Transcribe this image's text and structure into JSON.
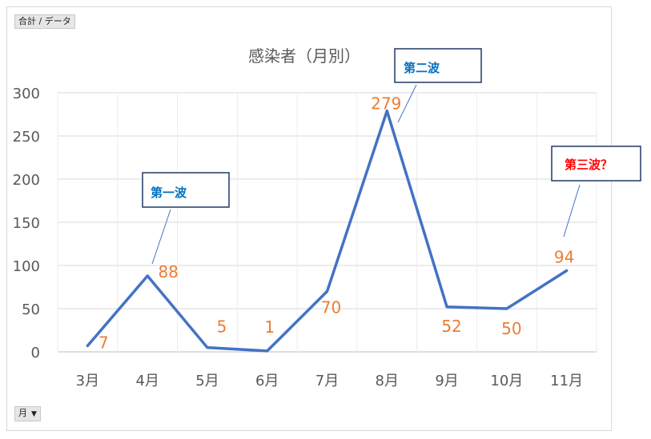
{
  "field_buttons": {
    "values_label": "合計 / データ",
    "axis_label": "月",
    "axis_arrow": "▼"
  },
  "chart_data": {
    "type": "line",
    "title": "感染者（月別）",
    "categories": [
      "3月",
      "4月",
      "5月",
      "6月",
      "7月",
      "8月",
      "9月",
      "10月",
      "11月"
    ],
    "series": [
      {
        "values": [
          7,
          88,
          5,
          1,
          70,
          279,
          52,
          50,
          94
        ]
      }
    ],
    "ylim": [
      0,
      300
    ],
    "yticks": [
      0,
      50,
      100,
      150,
      200,
      250,
      300
    ],
    "grid": true,
    "legend": "none",
    "colors": {
      "line": "#4472C4",
      "labels": "#ED7D31",
      "axis_text": "#595959",
      "callout_text": "#0070C0",
      "callout_alert": "#FF0000"
    },
    "annotations": [
      {
        "text": "第一波",
        "point": 1,
        "style": "normal"
      },
      {
        "text": "第二波",
        "point": 5,
        "style": "normal"
      },
      {
        "text": "第三波？",
        "point": 8,
        "style": "alert"
      }
    ]
  }
}
